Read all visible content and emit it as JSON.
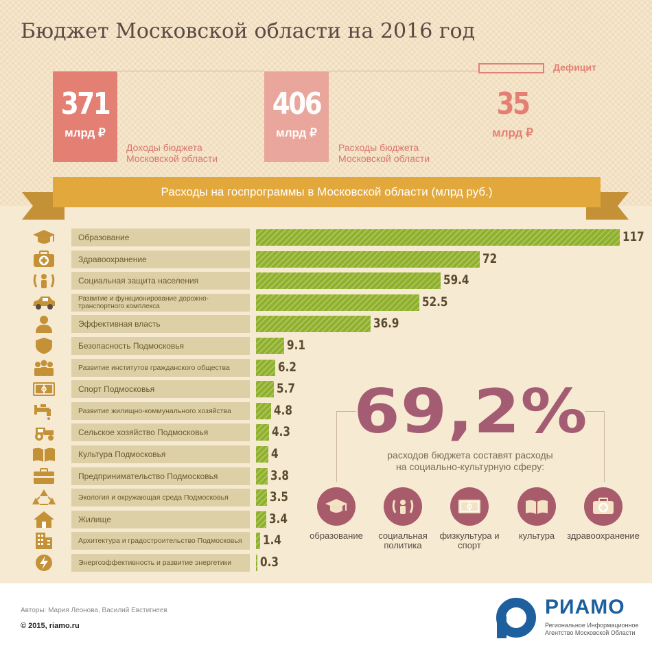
{
  "title": "Бюджет Московской области на 2016 год",
  "stats": {
    "income": {
      "value": "371",
      "unit": "млрд ₽",
      "desc_line1": "Доходы бюджета",
      "desc_line2": "Московской области"
    },
    "expense": {
      "value": "406",
      "unit": "млрд ₽",
      "desc_line1": "Расходы бюджета",
      "desc_line2": "Московской области"
    },
    "deficit": {
      "value": "35",
      "unit": "млрд ₽",
      "label": "Дефицит"
    }
  },
  "banner": "Расходы на госпрограммы в Московской области (млрд руб.)",
  "colors": {
    "bar": "#8fb02a",
    "accent": "#e47f74",
    "banner": "#e3a83c",
    "circle": "#a85b6b"
  },
  "chart_data": {
    "type": "bar",
    "orientation": "horizontal",
    "categories": [
      "Образование",
      "Здравоохранение",
      "Социальная защита населения",
      "Развитие и функционирование дорожно-транспортного комплекса",
      "Эффективная власть",
      "Безопасность Подмосковья",
      "Развитие институтов гражданского общества",
      "Спорт Подмосковья",
      "Развитие жилищно-коммунального хозяйства",
      "Сельское хозяйство Подмосковья",
      "Культура Подмосковья",
      "Предпринимательство Подмосковья",
      "Экология и окружающая среда Подмосковья",
      "Жилище",
      "Архитектура и градостроительство Подмосковья",
      "Энергоэффективность и развитие энергетики"
    ],
    "values": [
      117,
      72,
      59.4,
      52.5,
      36.9,
      9.1,
      6.2,
      5.7,
      4.8,
      4.3,
      4,
      3.8,
      3.5,
      3.4,
      1.4,
      0.3
    ],
    "value_labels": [
      "117",
      "72",
      "59.4",
      "52.5",
      "36.9",
      "9.1",
      "6.2",
      "5.7",
      "4.8",
      "4.3",
      "4",
      "3.8",
      "3.5",
      "3.4",
      "1.4",
      "0.3"
    ],
    "icons": [
      "graduation-cap-icon",
      "medical-kit-icon",
      "family-icon",
      "car-icon",
      "person-icon",
      "shield-icon",
      "group-icon",
      "stadium-icon",
      "faucet-icon",
      "tractor-icon",
      "book-icon",
      "briefcase-icon",
      "recycle-icon",
      "house-icon",
      "building-icon",
      "energy-icon"
    ],
    "title": "Расходы на госпрограммы в Московской области (млрд руб.)",
    "xlim": [
      0,
      117
    ]
  },
  "highlight": {
    "percent": "69,2%",
    "desc_line1": "расходов бюджета составят расходы",
    "desc_line2": "на социально-культурную сферу:",
    "spheres": [
      {
        "label": "образование",
        "icon": "graduation-cap-icon"
      },
      {
        "label": "социальная политика",
        "icon": "family-icon"
      },
      {
        "label": "физкультура и спорт",
        "icon": "stadium-icon"
      },
      {
        "label": "культура",
        "icon": "book-icon"
      },
      {
        "label": "здравоохранение",
        "icon": "medical-kit-icon"
      }
    ]
  },
  "footer": {
    "authors": "Авторы: Мария Леонова, Василий Евстигнеев",
    "copyright": "© 2015, riamo.ru",
    "logo_name": "РИАМО",
    "logo_sub": "Региональное Информационное Агентство Московской Области"
  }
}
